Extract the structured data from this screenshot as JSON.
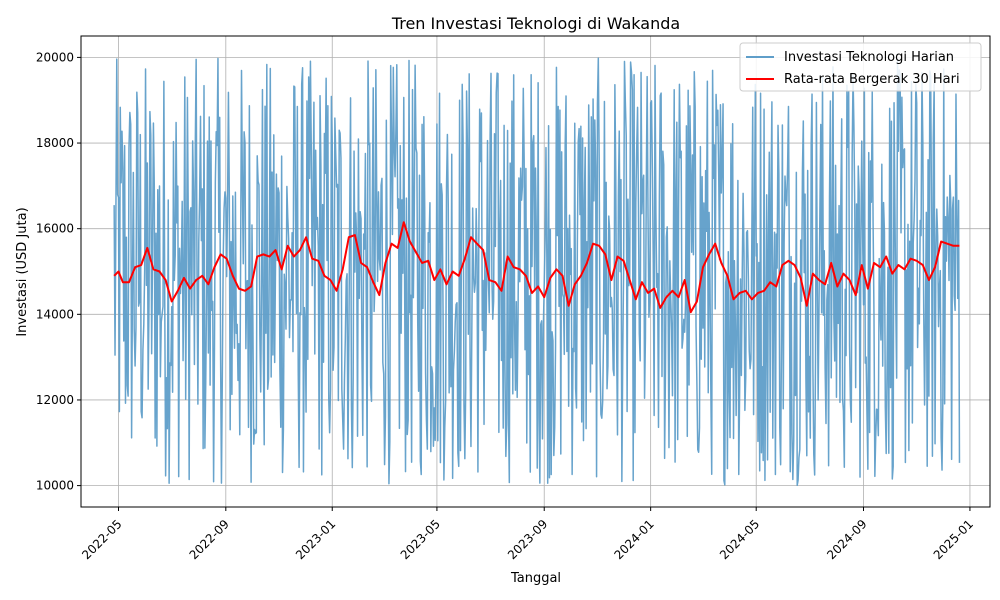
{
  "chart_data": {
    "type": "line",
    "title": "Tren Investasi Teknologi di Wakanda",
    "xlabel": "Tanggal",
    "ylabel": "Investasi (USD Juta)",
    "xlim": [
      "2022-03-19",
      "2025-01-24"
    ],
    "ylim": [
      9500,
      20500
    ],
    "x_ticks": [
      "2022-05",
      "2022-09",
      "2023-01",
      "2023-05",
      "2023-09",
      "2024-01",
      "2024-05",
      "2024-09",
      "2025-01"
    ],
    "y_ticks": [
      10000,
      12000,
      14000,
      16000,
      18000,
      20000
    ],
    "grid": true,
    "legend_position": "top-right",
    "daily_range": {
      "start": "2022-04-26",
      "end": "2024-12-20",
      "min": 10000,
      "max": 20000
    },
    "series": [
      {
        "name": "Investasi Teknologi Harian",
        "color": "#5f9ec9",
        "style": "daily-noisy"
      },
      {
        "name": "Rata-rata Bergerak 30 Hari",
        "color": "#ff0000",
        "points": [
          [
            "2022-04-26",
            14900
          ],
          [
            "2022-05-01",
            15000
          ],
          [
            "2022-05-06",
            14750
          ],
          [
            "2022-05-13",
            14750
          ],
          [
            "2022-05-20",
            15100
          ],
          [
            "2022-05-27",
            15150
          ],
          [
            "2022-06-03",
            15550
          ],
          [
            "2022-06-10",
            15050
          ],
          [
            "2022-06-17",
            15000
          ],
          [
            "2022-06-24",
            14800
          ],
          [
            "2022-07-01",
            14300
          ],
          [
            "2022-07-08",
            14550
          ],
          [
            "2022-07-15",
            14850
          ],
          [
            "2022-07-22",
            14600
          ],
          [
            "2022-07-29",
            14800
          ],
          [
            "2022-08-05",
            14900
          ],
          [
            "2022-08-12",
            14700
          ],
          [
            "2022-08-19",
            15100
          ],
          [
            "2022-08-26",
            15400
          ],
          [
            "2022-09-02",
            15300
          ],
          [
            "2022-09-09",
            14900
          ],
          [
            "2022-09-16",
            14600
          ],
          [
            "2022-09-23",
            14550
          ],
          [
            "2022-09-30",
            14650
          ],
          [
            "2022-10-07",
            15350
          ],
          [
            "2022-10-14",
            15400
          ],
          [
            "2022-10-21",
            15350
          ],
          [
            "2022-10-28",
            15500
          ],
          [
            "2022-11-04",
            15050
          ],
          [
            "2022-11-11",
            15600
          ],
          [
            "2022-11-18",
            15350
          ],
          [
            "2022-11-25",
            15500
          ],
          [
            "2022-12-02",
            15800
          ],
          [
            "2022-12-09",
            15300
          ],
          [
            "2022-12-16",
            15250
          ],
          [
            "2022-12-23",
            14900
          ],
          [
            "2022-12-30",
            14800
          ],
          [
            "2023-01-06",
            14550
          ],
          [
            "2023-01-13",
            15050
          ],
          [
            "2023-01-20",
            15800
          ],
          [
            "2023-01-27",
            15850
          ],
          [
            "2023-02-03",
            15200
          ],
          [
            "2023-02-10",
            15100
          ],
          [
            "2023-02-17",
            14750
          ],
          [
            "2023-02-24",
            14450
          ],
          [
            "2023-03-03",
            15200
          ],
          [
            "2023-03-10",
            15650
          ],
          [
            "2023-03-17",
            15550
          ],
          [
            "2023-03-24",
            16150
          ],
          [
            "2023-03-31",
            15700
          ],
          [
            "2023-04-07",
            15450
          ],
          [
            "2023-04-14",
            15200
          ],
          [
            "2023-04-21",
            15250
          ],
          [
            "2023-04-28",
            14800
          ],
          [
            "2023-05-05",
            15050
          ],
          [
            "2023-05-12",
            14700
          ],
          [
            "2023-05-19",
            15000
          ],
          [
            "2023-05-26",
            14900
          ],
          [
            "2023-06-02",
            15300
          ],
          [
            "2023-06-09",
            15800
          ],
          [
            "2023-06-16",
            15650
          ],
          [
            "2023-06-23",
            15500
          ],
          [
            "2023-06-30",
            14800
          ],
          [
            "2023-07-07",
            14750
          ],
          [
            "2023-07-14",
            14550
          ],
          [
            "2023-07-21",
            15350
          ],
          [
            "2023-07-28",
            15100
          ],
          [
            "2023-08-04",
            15050
          ],
          [
            "2023-08-11",
            14900
          ],
          [
            "2023-08-18",
            14500
          ],
          [
            "2023-08-25",
            14650
          ],
          [
            "2023-09-01",
            14400
          ],
          [
            "2023-09-08",
            14850
          ],
          [
            "2023-09-15",
            15050
          ],
          [
            "2023-09-22",
            14900
          ],
          [
            "2023-09-29",
            14200
          ],
          [
            "2023-10-06",
            14700
          ],
          [
            "2023-10-13",
            14900
          ],
          [
            "2023-10-20",
            15200
          ],
          [
            "2023-10-27",
            15650
          ],
          [
            "2023-11-03",
            15600
          ],
          [
            "2023-11-10",
            15400
          ],
          [
            "2023-11-17",
            14800
          ],
          [
            "2023-11-24",
            15350
          ],
          [
            "2023-12-01",
            15250
          ],
          [
            "2023-12-08",
            14800
          ],
          [
            "2023-12-15",
            14350
          ],
          [
            "2023-12-22",
            14750
          ],
          [
            "2023-12-29",
            14500
          ],
          [
            "2024-01-05",
            14600
          ],
          [
            "2024-01-12",
            14150
          ],
          [
            "2024-01-19",
            14400
          ],
          [
            "2024-01-26",
            14550
          ],
          [
            "2024-02-02",
            14400
          ],
          [
            "2024-02-09",
            14800
          ],
          [
            "2024-02-16",
            14050
          ],
          [
            "2024-02-23",
            14300
          ],
          [
            "2024-03-01",
            15100
          ],
          [
            "2024-03-08",
            15400
          ],
          [
            "2024-03-15",
            15650
          ],
          [
            "2024-03-22",
            15200
          ],
          [
            "2024-03-29",
            14900
          ],
          [
            "2024-04-05",
            14350
          ],
          [
            "2024-04-12",
            14500
          ],
          [
            "2024-04-19",
            14550
          ],
          [
            "2024-04-26",
            14350
          ],
          [
            "2024-05-03",
            14500
          ],
          [
            "2024-05-10",
            14550
          ],
          [
            "2024-05-17",
            14750
          ],
          [
            "2024-05-24",
            14650
          ],
          [
            "2024-05-31",
            15150
          ],
          [
            "2024-06-07",
            15250
          ],
          [
            "2024-06-14",
            15150
          ],
          [
            "2024-06-21",
            14850
          ],
          [
            "2024-06-28",
            14200
          ],
          [
            "2024-07-05",
            14950
          ],
          [
            "2024-07-12",
            14800
          ],
          [
            "2024-07-19",
            14700
          ],
          [
            "2024-07-26",
            15200
          ],
          [
            "2024-08-02",
            14650
          ],
          [
            "2024-08-09",
            14950
          ],
          [
            "2024-08-16",
            14800
          ],
          [
            "2024-08-23",
            14450
          ],
          [
            "2024-08-30",
            15150
          ],
          [
            "2024-09-06",
            14600
          ],
          [
            "2024-09-13",
            15200
          ],
          [
            "2024-09-20",
            15100
          ],
          [
            "2024-09-27",
            15350
          ],
          [
            "2024-10-04",
            14950
          ],
          [
            "2024-10-11",
            15150
          ],
          [
            "2024-10-18",
            15050
          ],
          [
            "2024-10-25",
            15300
          ],
          [
            "2024-11-01",
            15250
          ],
          [
            "2024-11-08",
            15150
          ],
          [
            "2024-11-15",
            14800
          ],
          [
            "2024-11-22",
            15100
          ],
          [
            "2024-11-29",
            15700
          ],
          [
            "2024-12-06",
            15650
          ],
          [
            "2024-12-13",
            15600
          ],
          [
            "2024-12-20",
            15600
          ]
        ]
      }
    ]
  }
}
